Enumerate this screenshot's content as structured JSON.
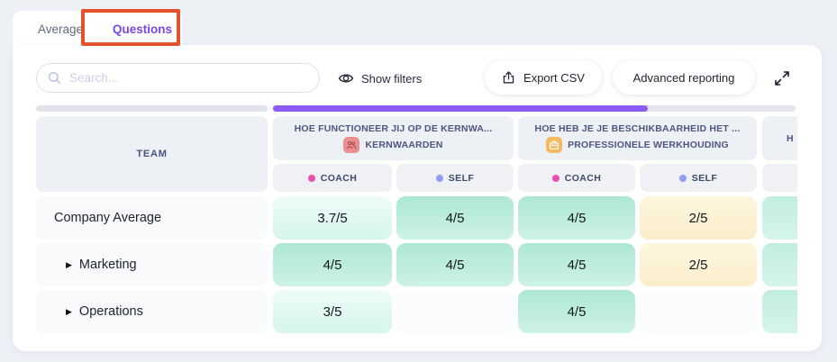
{
  "tabs": [
    {
      "label": "Average",
      "active": false
    },
    {
      "label": "Questions",
      "active": true
    }
  ],
  "annotation": {
    "highlight_color": "#e4512b",
    "highlighted_tab": "Questions"
  },
  "toolbar": {
    "search_placeholder": "Search...",
    "search_value": "",
    "show_filters_label": "Show filters",
    "export_csv_label": "Export CSV",
    "advanced_reporting_label": "Advanced reporting"
  },
  "scrollbar": {
    "accent_color": "#8b5cf6"
  },
  "table": {
    "team_header": "TEAM",
    "questions": [
      {
        "title": "HOE FUNCTIONEER JIJ OP DE KERNWA...",
        "category": "KERNWAARDEN",
        "icon": "people-icon",
        "icon_bg": "#e9908e"
      },
      {
        "title": "HOE HEB JE JE BESCHIKBAARHEID HET ...",
        "category": "PROFESSIONELE WERKHOUDING",
        "icon": "briefcase-icon",
        "icon_bg": "#f5b863"
      },
      {
        "title": "H",
        "category": "",
        "icon": "",
        "icon_bg": "",
        "partial": true
      }
    ],
    "legend": {
      "coach_color": "#e750b0",
      "self_color": "#929cf0"
    },
    "subheaders": [
      {
        "label": "COACH",
        "type": "coach"
      },
      {
        "label": "SELF",
        "type": "self"
      },
      {
        "label": "COACH",
        "type": "coach"
      },
      {
        "label": "SELF",
        "type": "self"
      },
      {
        "label": "",
        "type": "none"
      }
    ],
    "rows": [
      {
        "team": "Company Average",
        "expandable": false,
        "values": [
          {
            "text": "3.7/5",
            "tone": "mint"
          },
          {
            "text": "4/5",
            "tone": "teal"
          },
          {
            "text": "4/5",
            "tone": "teal"
          },
          {
            "text": "2/5",
            "tone": "yellow"
          },
          {
            "text": "",
            "tone": "teal2"
          }
        ]
      },
      {
        "team": "Marketing",
        "expandable": true,
        "values": [
          {
            "text": "4/5",
            "tone": "teal"
          },
          {
            "text": "4/5",
            "tone": "teal"
          },
          {
            "text": "4/5",
            "tone": "teal"
          },
          {
            "text": "2/5",
            "tone": "yellow"
          },
          {
            "text": "",
            "tone": "teal2"
          }
        ]
      },
      {
        "team": "Operations",
        "expandable": true,
        "values": [
          {
            "text": "3/5",
            "tone": "mint"
          },
          {
            "text": "",
            "tone": "empty"
          },
          {
            "text": "4/5",
            "tone": "teal"
          },
          {
            "text": "",
            "tone": "empty"
          },
          {
            "text": "",
            "tone": "teal2"
          }
        ]
      }
    ]
  }
}
